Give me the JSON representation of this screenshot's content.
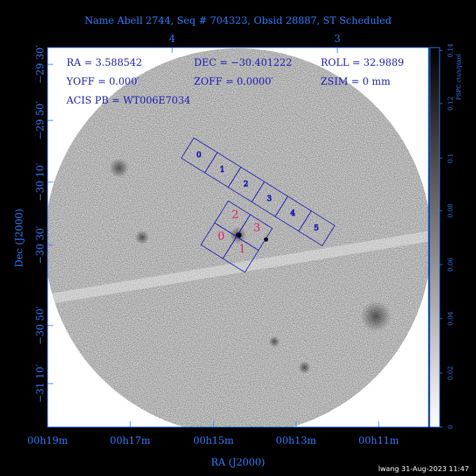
{
  "title": "Name Abell 2744, Seq # 704323, Obsid 28887, ST Scheduled",
  "info": [
    "RA = 3.588542",
    "DEC = −30.401222",
    "ROLL = 32.9889",
    "YOFF =    0.000′",
    "ZOFF =  0.0000′",
    "ZSIM = 0 mm",
    "ACIS PB = WT006E7034"
  ],
  "top_ticks": [
    "4",
    "3"
  ],
  "left_ticks": [
    "−29 30′",
    "−29 50′",
    "−30 10′",
    "−30 30′",
    "−30 50′",
    "−31 10′"
  ],
  "bottom_ticks": [
    "00h19m",
    "00h17m",
    "00h15m",
    "00h13m",
    "00h11m"
  ],
  "x_label": "RA (J2000)",
  "y_label": "Dec (J2000)",
  "colorbar": {
    "label": "PSPC cts/s/pixel",
    "ticks": [
      "0",
      "0.02",
      "0.04",
      "0.06",
      "0.08",
      "0.1",
      "0.12",
      "0.14"
    ]
  },
  "chips_top": [
    "0",
    "1",
    "2",
    "3",
    "4",
    "5"
  ],
  "chips_main": [
    "2",
    "3",
    "0",
    "1"
  ],
  "footer": "lwang 31-Aug-2023 11:47"
}
